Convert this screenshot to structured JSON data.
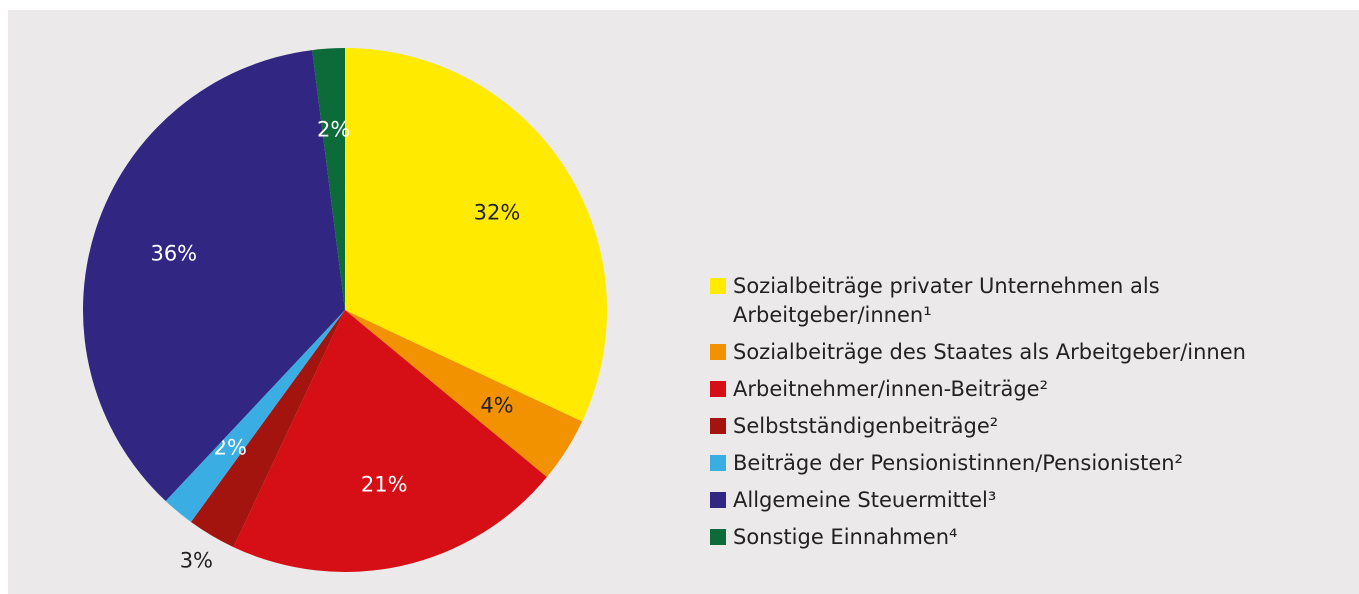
{
  "chart_data": {
    "type": "pie",
    "series": [
      {
        "name": "Sozialbeiträge privater Unternehmen als Arbeitgeber/innen¹",
        "color": "#ffea00"
      },
      {
        "name": "Sozialbeiträge des Staates als Arbeitgeber/innen",
        "color": "#f39200"
      },
      {
        "name": "Arbeitnehmer/innen-Beiträge²",
        "color": "#d50f15"
      },
      {
        "name": "Selbstständigenbeiträge²",
        "color": "#a3140f"
      },
      {
        "name": "Beiträge der Pensionistinnen/Pensionisten²",
        "color": "#3aaee3"
      },
      {
        "name": "Allgemeine Steuermittel³",
        "color": "#312783"
      },
      {
        "name": "Sonstige Einnahmen⁴",
        "color": "#0c6b39"
      }
    ],
    "values": [
      32,
      4,
      21,
      3,
      2,
      36,
      2
    ],
    "value_labels": [
      "32%",
      "4%",
      "21%",
      "3%",
      "2%",
      "36%",
      "2%"
    ],
    "legend": "right"
  }
}
